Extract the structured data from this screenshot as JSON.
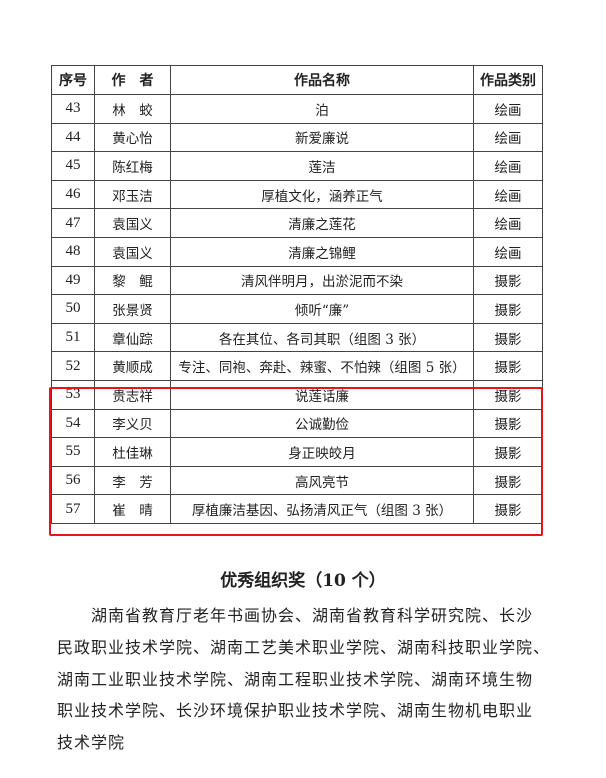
{
  "table": {
    "headers": [
      "序号",
      "作　者",
      "作品名称",
      "作品类别"
    ],
    "rows": [
      [
        "43",
        "林　蛟",
        "泊",
        "绘画"
      ],
      [
        "44",
        "黄心怡",
        "新爱廉说",
        "绘画"
      ],
      [
        "45",
        "陈红梅",
        "莲洁",
        "绘画"
      ],
      [
        "46",
        "邓玉洁",
        "厚植文化，涵养正气",
        "绘画"
      ],
      [
        "47",
        "袁国义",
        "清廉之莲花",
        "绘画"
      ],
      [
        "48",
        "袁国义",
        "清廉之锦鲤",
        "绘画"
      ],
      [
        "49",
        "黎　鲲",
        "清风伴明月，出淤泥而不染",
        "摄影"
      ],
      [
        "50",
        "张景贤",
        "倾听“廉”",
        "摄影"
      ],
      [
        "51",
        "章仙踪",
        "各在其位、各司其职（组图 3 张）",
        "摄影"
      ],
      [
        "52",
        "黄顺成",
        "专注、同袍、奔赴、辣蜜、不怕辣（组图 5 张）",
        "摄影"
      ],
      [
        "53",
        "贵志祥",
        "说莲话廉",
        "摄影"
      ],
      [
        "54",
        "李义贝",
        "公诚勤俭",
        "摄影"
      ],
      [
        "55",
        "杜佳琳",
        "身正映皎月",
        "摄影"
      ],
      [
        "56",
        "李　芳",
        "高风亮节",
        "摄影"
      ],
      [
        "57",
        "崔　晴",
        "厚植廉洁基因、弘扬清风正气（组图 3 张）",
        "摄影"
      ]
    ]
  },
  "highlight_color": "#e8141b",
  "section": {
    "title": "优秀组织奖（10 个）",
    "lines": [
      "湖南省教育厅老年书画协会、湖南省教育科学研究院、长沙",
      "民政职业技术学院、湖南工艺美术职业学院、湖南科技职业学院、",
      "湖南工业职业技术学院、湖南工程职业技术学院、湖南环境生物",
      "职业技术学院、长沙环境保护职业技术学院、湖南生物机电职业",
      "技术学院"
    ]
  }
}
